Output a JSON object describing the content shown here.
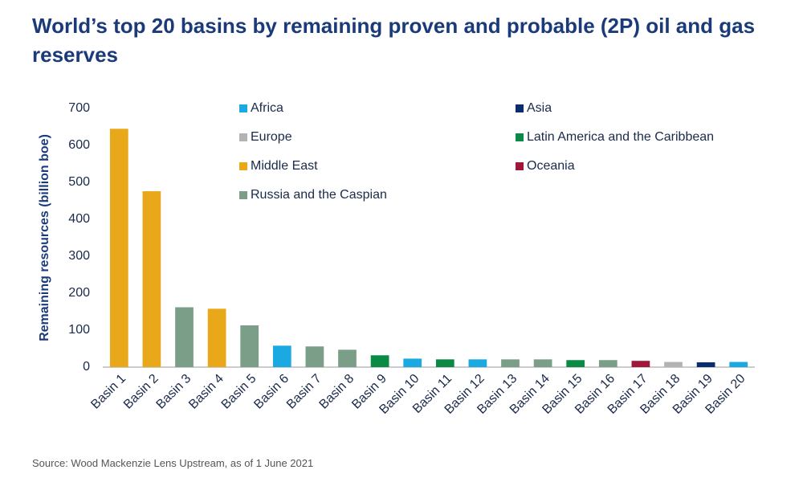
{
  "chart_data": {
    "type": "bar",
    "title": "World’s top 20 basins by remaining proven and probable (2P) oil and gas reserves",
    "y_label": "Remaining resources (billion boe)",
    "source": "Source: Wood Mackenzie Lens Upstream, as of 1 June 2021",
    "categories": [
      "Basin 1",
      "Basin 2",
      "Basin 3",
      "Basin 4",
      "Basin 5",
      "Basin 6",
      "Basin 7",
      "Basin 8",
      "Basin 9",
      "Basin 10",
      "Basin 11",
      "Basin 12",
      "Basin 13",
      "Basin 14",
      "Basin 15",
      "Basin 16",
      "Basin 17",
      "Basin 18",
      "Basin 19",
      "Basin 20"
    ],
    "series": [
      {
        "name": "Africa",
        "color": "#1ba9e1",
        "values": [
          null,
          null,
          null,
          null,
          null,
          58,
          null,
          null,
          null,
          23,
          null,
          21,
          null,
          null,
          null,
          null,
          null,
          null,
          null,
          14
        ]
      },
      {
        "name": "Asia",
        "color": "#0a2d6e",
        "values": [
          null,
          null,
          null,
          null,
          null,
          null,
          null,
          null,
          null,
          null,
          null,
          null,
          null,
          null,
          null,
          null,
          null,
          null,
          13,
          null
        ]
      },
      {
        "name": "Europe",
        "color": "#b3b3b3",
        "values": [
          null,
          null,
          null,
          null,
          null,
          null,
          null,
          null,
          null,
          null,
          null,
          null,
          null,
          null,
          null,
          null,
          null,
          14,
          null,
          null
        ]
      },
      {
        "name": "Latin America and the Caribbean",
        "color": "#0a8a45",
        "values": [
          null,
          null,
          null,
          null,
          null,
          null,
          null,
          null,
          32,
          null,
          21,
          null,
          null,
          null,
          19,
          null,
          null,
          null,
          null,
          null
        ]
      },
      {
        "name": "Middle East",
        "color": "#e8a81a",
        "values": [
          645,
          476,
          null,
          158,
          null,
          null,
          null,
          null,
          null,
          null,
          null,
          null,
          null,
          null,
          null,
          null,
          null,
          null,
          null,
          null
        ]
      },
      {
        "name": "Oceania",
        "color": "#a0173a",
        "values": [
          null,
          null,
          null,
          null,
          null,
          null,
          null,
          null,
          null,
          null,
          null,
          null,
          null,
          null,
          null,
          null,
          17,
          null,
          null,
          null
        ]
      },
      {
        "name": "Russia and the Caspian",
        "color": "#7a9e87",
        "values": [
          null,
          null,
          162,
          null,
          113,
          null,
          56,
          47,
          null,
          null,
          null,
          null,
          21,
          21,
          null,
          19,
          null,
          null,
          null,
          null
        ]
      }
    ],
    "ylim": [
      0,
      700
    ],
    "yticks": [
      0,
      100,
      200,
      300,
      400,
      500,
      600,
      700
    ],
    "grid": false
  }
}
